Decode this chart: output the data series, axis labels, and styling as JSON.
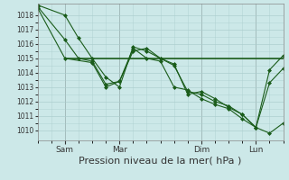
{
  "bg_color": "#cce8e8",
  "grid_color": "#aacccc",
  "line_color": "#1a5c1a",
  "marker_color": "#1a5c1a",
  "xlabel": "Pression niveau de la mer( hPa )",
  "xlabel_fontsize": 8,
  "yticks": [
    1010,
    1011,
    1012,
    1013,
    1014,
    1015,
    1016,
    1017,
    1018
  ],
  "ylim": [
    1009.3,
    1018.8
  ],
  "xtick_labels": [
    "Sam",
    "Mar",
    "Dim",
    "Lun"
  ],
  "xtick_positions": [
    1,
    3,
    6,
    8
  ],
  "xlim": [
    0,
    9
  ],
  "vlines": [
    1,
    3,
    6,
    8
  ],
  "series1_x": [
    0.0,
    1.0,
    1.5,
    2.0,
    2.5,
    3.0,
    3.5,
    4.0,
    4.5,
    5.0,
    5.5,
    6.0,
    6.5,
    7.0,
    7.5,
    8.0,
    8.5,
    9.0
  ],
  "series1_y": [
    1018.7,
    1018.0,
    1016.4,
    1015.0,
    1013.7,
    1013.0,
    1015.8,
    1015.5,
    1015.0,
    1014.5,
    1012.7,
    1012.5,
    1012.0,
    1011.7,
    1011.1,
    1010.2,
    1009.8,
    1010.5
  ],
  "series2_x": [
    0.0,
    1.0,
    1.5,
    2.0,
    2.5,
    3.0,
    3.5,
    4.0,
    4.5,
    5.0,
    5.5,
    6.0,
    6.5,
    7.0,
    7.5,
    8.0,
    8.5,
    9.0
  ],
  "series2_y": [
    1018.6,
    1016.3,
    1015.0,
    1014.8,
    1013.2,
    1013.4,
    1015.7,
    1015.0,
    1014.8,
    1013.0,
    1012.8,
    1012.2,
    1011.8,
    1011.5,
    1010.8,
    1010.2,
    1013.3,
    1014.3
  ],
  "series3_x": [
    1.0,
    3.0,
    8.0,
    9.0
  ],
  "series3_y": [
    1015.0,
    1015.0,
    1015.0,
    1015.0
  ],
  "series4_x": [
    0.0,
    1.0,
    2.0,
    2.5,
    3.0,
    3.5,
    4.0,
    4.5,
    5.0,
    5.5,
    6.0,
    6.5,
    7.0,
    7.5,
    8.0,
    8.5,
    9.0
  ],
  "series4_y": [
    1018.5,
    1015.0,
    1014.7,
    1013.0,
    1013.4,
    1015.5,
    1015.7,
    1015.0,
    1014.6,
    1012.5,
    1012.7,
    1012.2,
    1011.6,
    1011.1,
    1010.2,
    1014.2,
    1015.2
  ]
}
